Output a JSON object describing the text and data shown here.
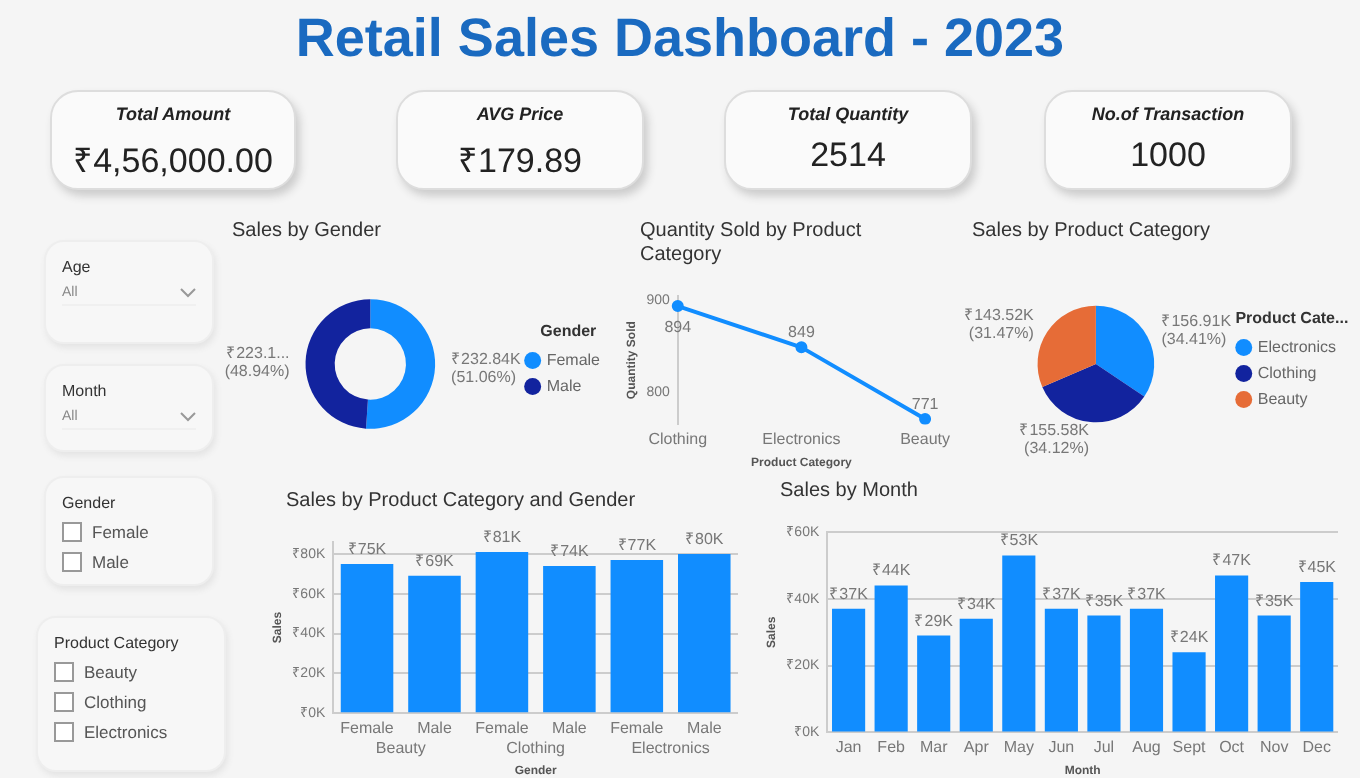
{
  "chart_data": [
    {
      "type": "other",
      "title": "Retail Sales Dashboard - 2023"
    },
    {
      "type": "other",
      "title": "Total Amount",
      "annotations": [
        "₹4,56,000.00"
      ]
    },
    {
      "type": "other",
      "title": "AVG Price",
      "annotations": [
        "₹179.89"
      ]
    },
    {
      "type": "other",
      "title": "Total Quantity",
      "annotations": [
        "2514"
      ]
    },
    {
      "type": "other",
      "title": "No.of Transaction",
      "annotations": [
        "1000"
      ]
    },
    {
      "type": "other",
      "title": "Age",
      "annotations": [
        "All"
      ]
    },
    {
      "type": "other",
      "title": "Month",
      "annotations": [
        "All"
      ]
    },
    {
      "type": "other",
      "title": "Gender",
      "annotations": [
        "Female",
        "Male"
      ]
    },
    {
      "type": "other",
      "title": "Product Category",
      "annotations": [
        "Beauty",
        "Clothing",
        "Electronics"
      ]
    },
    {
      "type": "donut",
      "title": "Sales by Gender",
      "categories": [
        "Female",
        "Male"
      ],
      "values": [
        51.06,
        48.94
      ],
      "colors": [
        "#118dff",
        "#12239e"
      ],
      "value_labels": [
        "₹232.84K\n(51.06%)",
        "₹223.1...\n(48.94%)"
      ],
      "legend": "right",
      "legend_title": "Gender"
    },
    {
      "type": "line",
      "title": "Quantity Sold by Product Category",
      "categories": [
        "Clothing",
        "Electronics",
        "Beauty"
      ],
      "series": [
        {
          "color": "#118dff",
          "values": [
            894,
            849,
            771
          ]
        }
      ],
      "ylim": [
        765,
        905
      ],
      "yticks": [
        800,
        900
      ],
      "xlabel": "Product Category",
      "ylabel": "Quantity Sold",
      "data_labels": true,
      "marker": "circle"
    },
    {
      "type": "pie",
      "title": "Sales by Product Category",
      "categories": [
        "Electronics",
        "Clothing",
        "Beauty"
      ],
      "values": [
        34.41,
        34.12,
        31.47
      ],
      "colors": [
        "#118dff",
        "#12239e",
        "#e66c37"
      ],
      "value_labels": [
        "₹156.91K\n(34.41%)",
        "₹155.58K\n(34.12%)",
        "₹143.52K\n(31.47%)"
      ],
      "legend": "right",
      "legend_title": "Product Cate..."
    },
    {
      "type": "bar",
      "title": "Sales by Product Category and Gender",
      "categories": [
        "Female",
        "Male",
        "Female",
        "Male",
        "Female",
        "Male"
      ],
      "series": [
        {
          "color": "#118dff",
          "values": [
            75,
            69,
            81,
            74,
            77,
            80
          ]
        }
      ],
      "value_labels": [
        "₹75K",
        "₹69K",
        "₹81K",
        "₹74K",
        "₹77K",
        "₹80K"
      ],
      "ylim": [
        0,
        86
      ],
      "yticks": [
        {
          "value": 0,
          "label": "₹0K"
        },
        {
          "value": 20,
          "label": "₹20K"
        },
        {
          "value": 40,
          "label": "₹40K"
        },
        {
          "value": 60,
          "label": "₹60K"
        },
        {
          "value": 80,
          "label": "₹80K"
        }
      ],
      "xlabel": "Gender",
      "ylabel": "Sales",
      "annotations": [
        "Beauty",
        "Clothing",
        "Electronics"
      ],
      "grid": "y"
    },
    {
      "type": "bar",
      "title": "Sales by Month",
      "categories": [
        "Jan",
        "Feb",
        "Mar",
        "Apr",
        "May",
        "Jun",
        "Jul",
        "Aug",
        "Sept",
        "Oct",
        "Nov",
        "Dec"
      ],
      "series": [
        {
          "color": "#118dff",
          "values": [
            37,
            44,
            29,
            34,
            53,
            37,
            35,
            37,
            24,
            47,
            35,
            45
          ]
        }
      ],
      "value_labels": [
        "₹37K",
        "₹44K",
        "₹29K",
        "₹34K",
        "₹53K",
        "₹37K",
        "₹35K",
        "₹37K",
        "₹24K",
        "₹47K",
        "₹35K",
        "₹45K"
      ],
      "ylim": [
        0,
        60
      ],
      "yticks": [
        {
          "value": 0,
          "label": "₹0K"
        },
        {
          "value": 20,
          "label": "₹20K"
        },
        {
          "value": 40,
          "label": "₹40K"
        },
        {
          "value": 60,
          "label": "₹60K"
        }
      ],
      "xlabel": "Month",
      "ylabel": "Sales",
      "grid": "y"
    }
  ]
}
